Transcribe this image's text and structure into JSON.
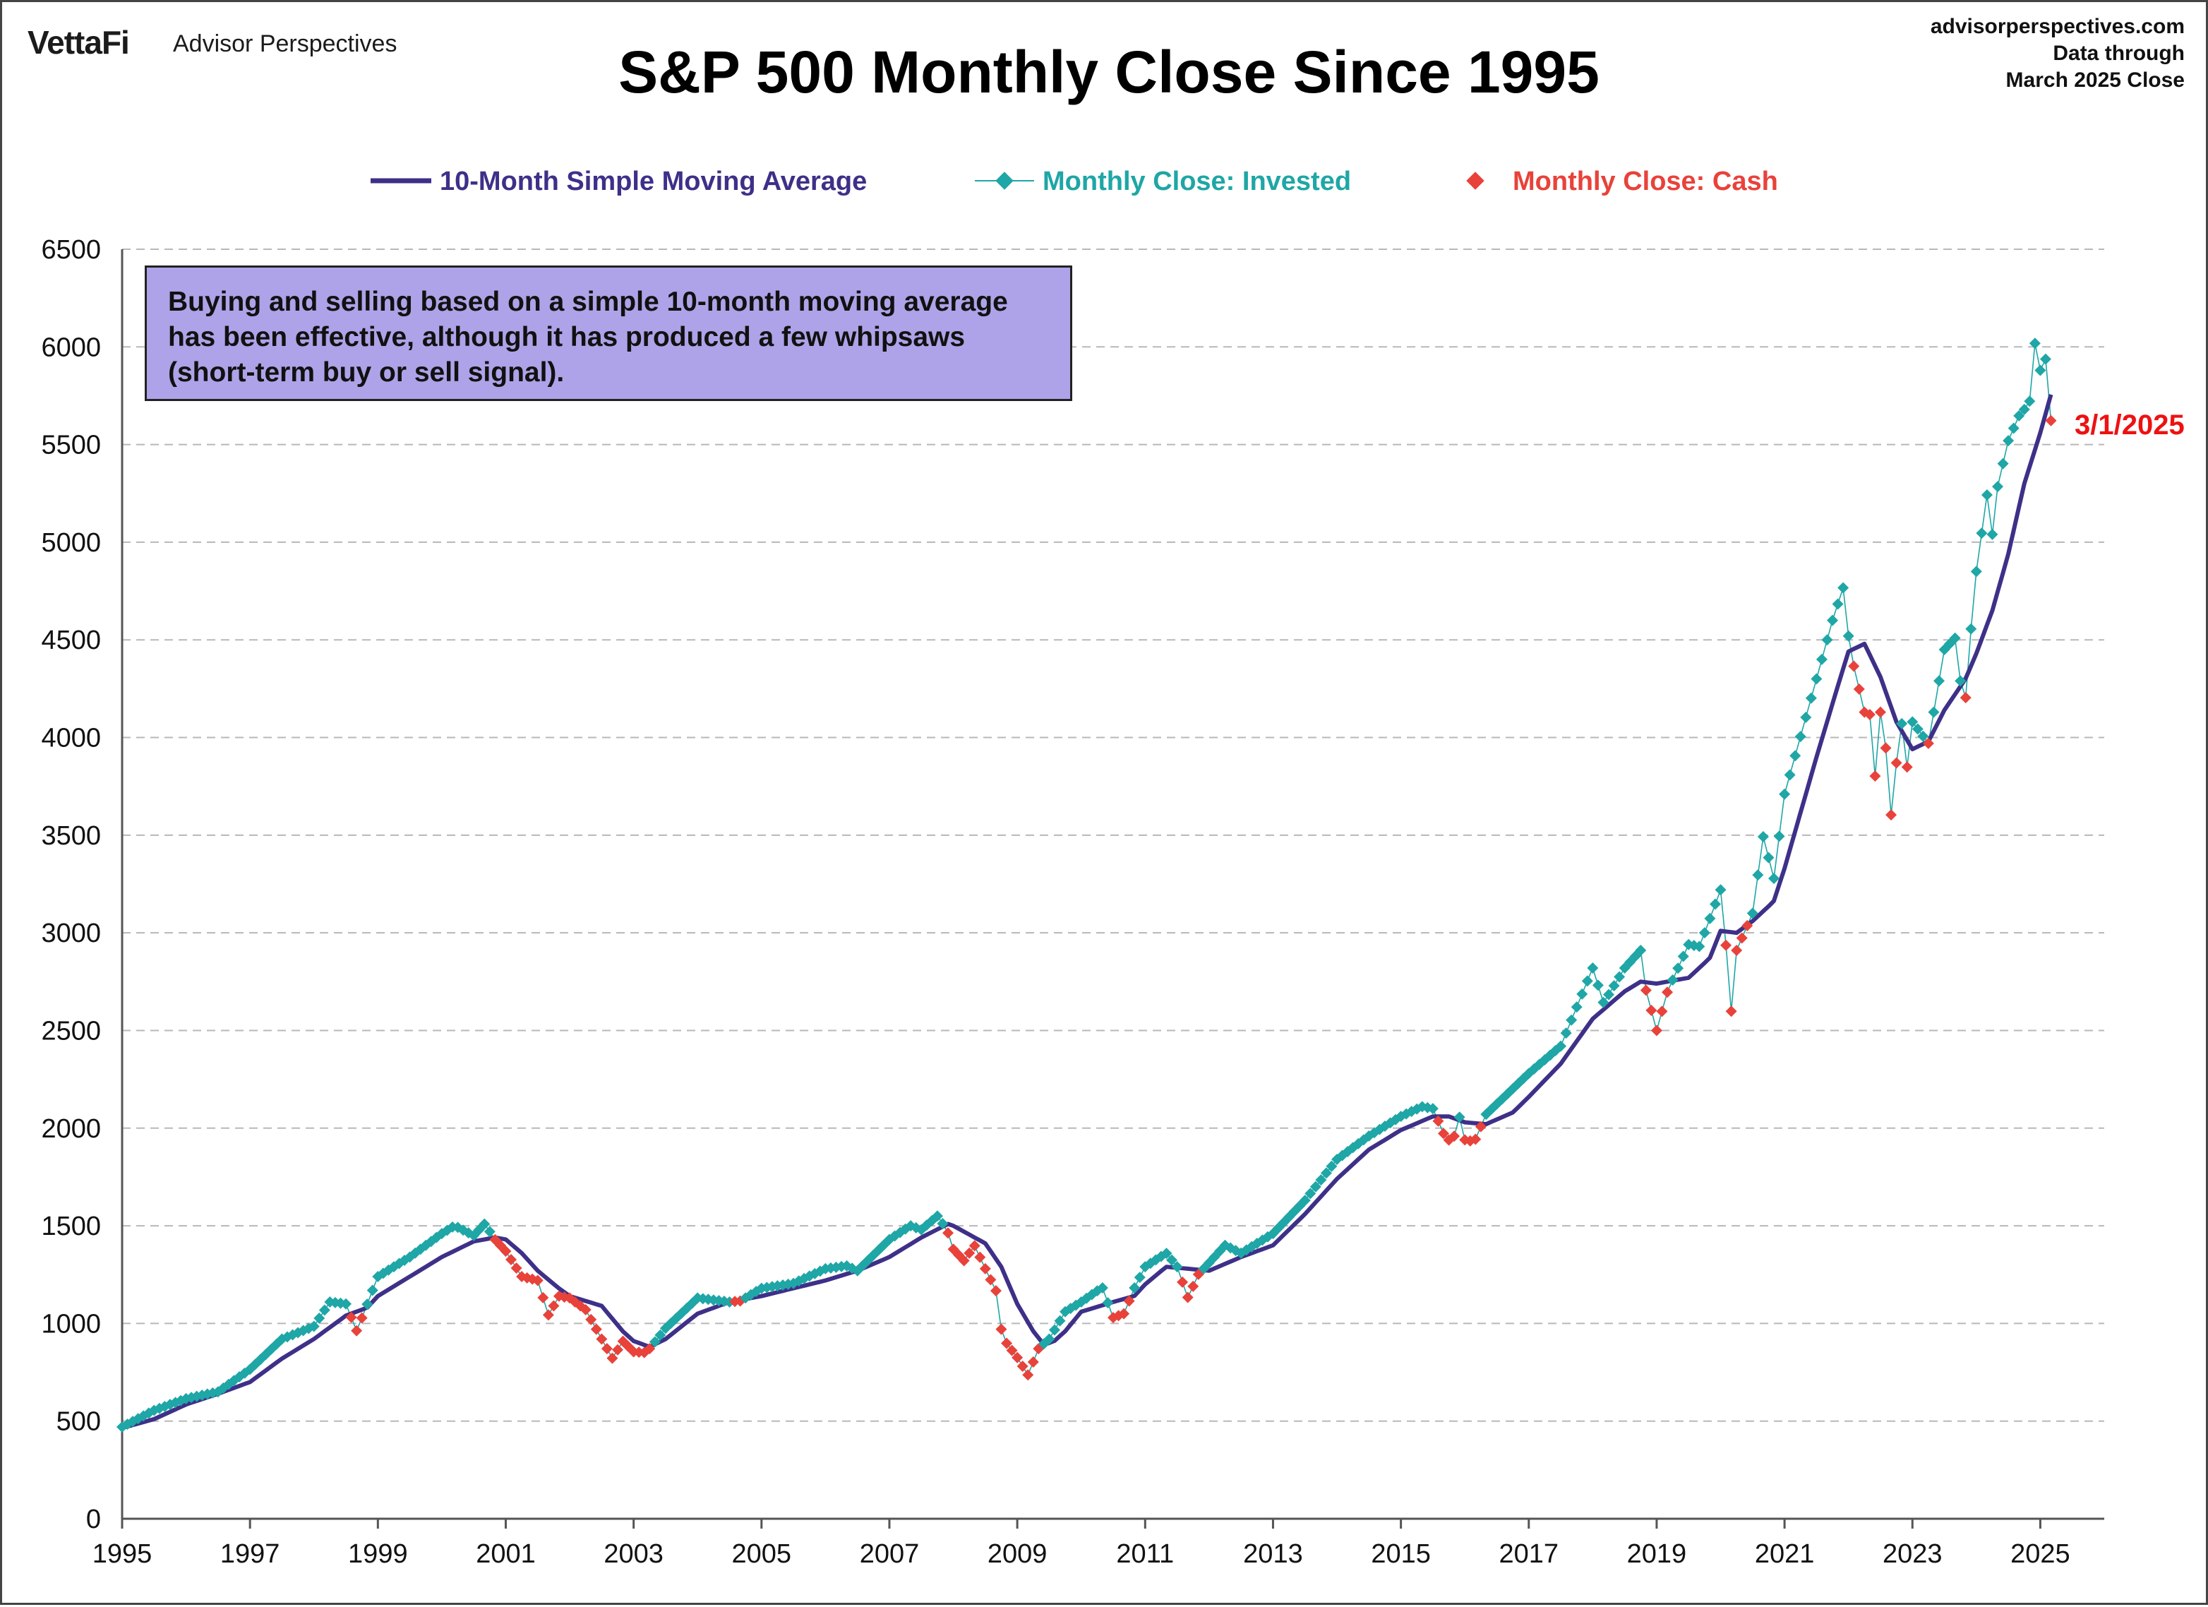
{
  "header": {
    "brand_logo": "VettaFi",
    "brand_name": "Advisor Perspectives",
    "website": "advisorperspectives.com",
    "data_note_line1": "Data through",
    "data_note_line2": "March 2025 Close"
  },
  "annotation": {
    "text": "Buying and selling based on a simple 10-month moving average has been effective, although it has produced a few whipsaws (short-term buy or sell signal).",
    "last_point_label": "3/1/2025"
  },
  "colors": {
    "sma": "#3e3088",
    "invested": "#1fa6a6",
    "cash": "#e8423a",
    "last_label": "#ee1111",
    "note_box": "#aea3e8",
    "grid": "#b8b8b8"
  },
  "chart_data": {
    "type": "line",
    "title": "S&P 500 Monthly Close Since 1995",
    "xlabel": "",
    "ylabel": "",
    "ylim": [
      0,
      6500
    ],
    "yticks": [
      0,
      500,
      1000,
      1500,
      2000,
      2500,
      3000,
      3500,
      4000,
      4500,
      5000,
      5500,
      6000,
      6500
    ],
    "xlim": [
      1995,
      2026
    ],
    "xticks": [
      "1995",
      "1997",
      "1999",
      "2001",
      "2003",
      "2005",
      "2007",
      "2009",
      "2011",
      "2013",
      "2015",
      "2017",
      "2019",
      "2021",
      "2023",
      "2025"
    ],
    "grid": "horizontal dashed",
    "legend_position": "top",
    "legend": [
      {
        "key": "sma",
        "label": "10-Month Simple Moving Average"
      },
      {
        "key": "invested",
        "label": "Monthly Close: Invested"
      },
      {
        "key": "cash",
        "label": "Monthly Close: Cash"
      }
    ],
    "monthly_close_anchors": [
      [
        1995.0,
        470
      ],
      [
        1995.5,
        555
      ],
      [
        1996.0,
        615
      ],
      [
        1996.5,
        650
      ],
      [
        1997.0,
        765
      ],
      [
        1997.5,
        920
      ],
      [
        1998.0,
        985
      ],
      [
        1998.25,
        1110
      ],
      [
        1998.5,
        1100
      ],
      [
        1998.67,
        960
      ],
      [
        1999.0,
        1240
      ],
      [
        1999.5,
        1340
      ],
      [
        2000.0,
        1460
      ],
      [
        2000.2,
        1500
      ],
      [
        2000.5,
        1450
      ],
      [
        2000.67,
        1510
      ],
      [
        2000.83,
        1430
      ],
      [
        2001.0,
        1370
      ],
      [
        2001.25,
        1240
      ],
      [
        2001.5,
        1220
      ],
      [
        2001.67,
        1040
      ],
      [
        2001.83,
        1140
      ],
      [
        2002.0,
        1130
      ],
      [
        2002.25,
        1070
      ],
      [
        2002.5,
        920
      ],
      [
        2002.67,
        820
      ],
      [
        2002.83,
        910
      ],
      [
        2003.0,
        855
      ],
      [
        2003.2,
        850
      ],
      [
        2003.5,
        975
      ],
      [
        2004.0,
        1130
      ],
      [
        2004.5,
        1110
      ],
      [
        2004.67,
        1115
      ],
      [
        2005.0,
        1180
      ],
      [
        2005.5,
        1205
      ],
      [
        2006.0,
        1280
      ],
      [
        2006.33,
        1295
      ],
      [
        2006.5,
        1270
      ],
      [
        2007.0,
        1430
      ],
      [
        2007.33,
        1500
      ],
      [
        2007.5,
        1480
      ],
      [
        2007.75,
        1550
      ],
      [
        2007.9,
        1480
      ],
      [
        2008.0,
        1380
      ],
      [
        2008.17,
        1320
      ],
      [
        2008.33,
        1400
      ],
      [
        2008.5,
        1280
      ],
      [
        2008.67,
        1165
      ],
      [
        2008.75,
        970
      ],
      [
        2008.83,
        900
      ],
      [
        2009.0,
        825
      ],
      [
        2009.17,
        735
      ],
      [
        2009.33,
        870
      ],
      [
        2009.5,
        920
      ],
      [
        2009.75,
        1060
      ],
      [
        2010.0,
        1110
      ],
      [
        2010.33,
        1185
      ],
      [
        2010.5,
        1030
      ],
      [
        2010.67,
        1050
      ],
      [
        2010.83,
        1180
      ],
      [
        2011.0,
        1290
      ],
      [
        2011.33,
        1360
      ],
      [
        2011.5,
        1290
      ],
      [
        2011.67,
        1130
      ],
      [
        2011.83,
        1250
      ],
      [
        2012.0,
        1310
      ],
      [
        2012.25,
        1400
      ],
      [
        2012.5,
        1360
      ],
      [
        2013.0,
        1460
      ],
      [
        2013.5,
        1630
      ],
      [
        2014.0,
        1840
      ],
      [
        2014.5,
        1960
      ],
      [
        2015.0,
        2060
      ],
      [
        2015.33,
        2110
      ],
      [
        2015.5,
        2100
      ],
      [
        2015.67,
        1970
      ],
      [
        2015.8,
        1920
      ],
      [
        2015.92,
        2060
      ],
      [
        2016.0,
        1940
      ],
      [
        2016.15,
        1930
      ],
      [
        2016.33,
        2070
      ],
      [
        2017.0,
        2280
      ],
      [
        2017.5,
        2420
      ],
      [
        2018.0,
        2820
      ],
      [
        2018.17,
        2640
      ],
      [
        2018.5,
        2820
      ],
      [
        2018.75,
        2910
      ],
      [
        2018.83,
        2710
      ],
      [
        2019.0,
        2500
      ],
      [
        2019.17,
        2700
      ],
      [
        2019.5,
        2940
      ],
      [
        2019.67,
        2930
      ],
      [
        2020.0,
        3220
      ],
      [
        2020.08,
        2950
      ],
      [
        2020.17,
        2585
      ],
      [
        2020.25,
        2910
      ],
      [
        2020.5,
        3100
      ],
      [
        2020.67,
        3500
      ],
      [
        2020.83,
        3270
      ],
      [
        2021.0,
        3710
      ],
      [
        2021.5,
        4300
      ],
      [
        2021.75,
        4600
      ],
      [
        2021.92,
        4770
      ],
      [
        2022.0,
        4520
      ],
      [
        2022.08,
        4370
      ],
      [
        2022.25,
        4130
      ],
      [
        2022.33,
        4130
      ],
      [
        2022.42,
        3790
      ],
      [
        2022.5,
        4130
      ],
      [
        2022.58,
        3960
      ],
      [
        2022.67,
        3590
      ],
      [
        2022.75,
        3870
      ],
      [
        2022.83,
        4080
      ],
      [
        2022.92,
        3840
      ],
      [
        2023.0,
        4080
      ],
      [
        2023.25,
        3970
      ],
      [
        2023.5,
        4450
      ],
      [
        2023.67,
        4510
      ],
      [
        2023.75,
        4290
      ],
      [
        2023.83,
        4190
      ],
      [
        2023.92,
        4570
      ],
      [
        2024.0,
        4850
      ],
      [
        2024.17,
        5250
      ],
      [
        2024.25,
        5040
      ],
      [
        2024.33,
        5280
      ],
      [
        2024.5,
        5520
      ],
      [
        2024.67,
        5650
      ],
      [
        2024.83,
        5710
      ],
      [
        2024.92,
        6030
      ],
      [
        2025.0,
        5880
      ],
      [
        2025.08,
        5950
      ],
      [
        2025.17,
        5610
      ]
    ],
    "sma_anchors": [
      [
        1995.0,
        465
      ],
      [
        1995.5,
        510
      ],
      [
        1996.0,
        585
      ],
      [
        1996.5,
        640
      ],
      [
        1997.0,
        700
      ],
      [
        1997.5,
        820
      ],
      [
        1998.0,
        920
      ],
      [
        1998.5,
        1040
      ],
      [
        1998.83,
        1080
      ],
      [
        1999.0,
        1140
      ],
      [
        1999.5,
        1240
      ],
      [
        2000.0,
        1340
      ],
      [
        2000.5,
        1420
      ],
      [
        2000.83,
        1440
      ],
      [
        2001.0,
        1430
      ],
      [
        2001.25,
        1360
      ],
      [
        2001.5,
        1270
      ],
      [
        2001.83,
        1180
      ],
      [
        2002.0,
        1140
      ],
      [
        2002.5,
        1090
      ],
      [
        2002.83,
        960
      ],
      [
        2003.0,
        910
      ],
      [
        2003.25,
        880
      ],
      [
        2003.5,
        920
      ],
      [
        2004.0,
        1050
      ],
      [
        2004.5,
        1110
      ],
      [
        2005.0,
        1140
      ],
      [
        2005.5,
        1180
      ],
      [
        2006.0,
        1220
      ],
      [
        2006.5,
        1270
      ],
      [
        2007.0,
        1340
      ],
      [
        2007.5,
        1440
      ],
      [
        2007.92,
        1510
      ],
      [
        2008.0,
        1500
      ],
      [
        2008.5,
        1410
      ],
      [
        2008.75,
        1290
      ],
      [
        2009.0,
        1100
      ],
      [
        2009.25,
        960
      ],
      [
        2009.42,
        890
      ],
      [
        2009.58,
        910
      ],
      [
        2009.75,
        960
      ],
      [
        2010.0,
        1060
      ],
      [
        2010.5,
        1110
      ],
      [
        2010.83,
        1140
      ],
      [
        2011.0,
        1200
      ],
      [
        2011.33,
        1290
      ],
      [
        2011.67,
        1280
      ],
      [
        2012.0,
        1270
      ],
      [
        2012.5,
        1340
      ],
      [
        2013.0,
        1400
      ],
      [
        2013.5,
        1560
      ],
      [
        2014.0,
        1740
      ],
      [
        2014.5,
        1890
      ],
      [
        2015.0,
        1990
      ],
      [
        2015.5,
        2060
      ],
      [
        2015.75,
        2060
      ],
      [
        2016.0,
        2030
      ],
      [
        2016.33,
        2020
      ],
      [
        2016.75,
        2080
      ],
      [
        2017.0,
        2160
      ],
      [
        2017.5,
        2330
      ],
      [
        2018.0,
        2560
      ],
      [
        2018.5,
        2700
      ],
      [
        2018.75,
        2750
      ],
      [
        2019.0,
        2740
      ],
      [
        2019.5,
        2770
      ],
      [
        2019.83,
        2870
      ],
      [
        2020.0,
        3010
      ],
      [
        2020.25,
        3000
      ],
      [
        2020.5,
        3060
      ],
      [
        2020.83,
        3160
      ],
      [
        2021.0,
        3330
      ],
      [
        2021.5,
        3900
      ],
      [
        2021.83,
        4260
      ],
      [
        2022.0,
        4440
      ],
      [
        2022.25,
        4480
      ],
      [
        2022.5,
        4310
      ],
      [
        2022.75,
        4080
      ],
      [
        2023.0,
        3940
      ],
      [
        2023.25,
        3980
      ],
      [
        2023.5,
        4140
      ],
      [
        2023.83,
        4300
      ],
      [
        2024.0,
        4430
      ],
      [
        2024.25,
        4650
      ],
      [
        2024.5,
        4940
      ],
      [
        2024.75,
        5300
      ],
      [
        2025.0,
        5560
      ],
      [
        2025.17,
        5760
      ]
    ]
  }
}
